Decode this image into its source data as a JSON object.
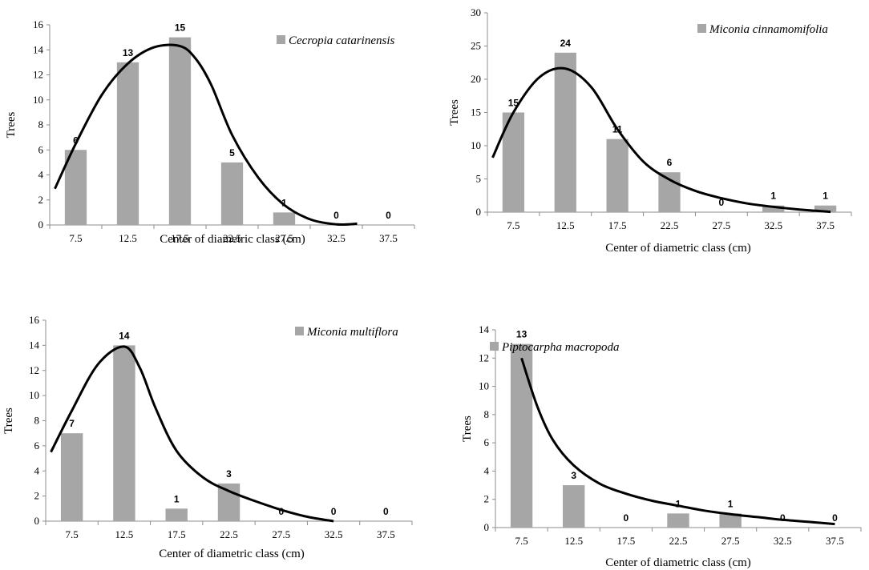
{
  "colors": {
    "bar": "#a6a6a6",
    "curve": "#000000",
    "axis": "#8c8c8c"
  },
  "chart_data": [
    {
      "type": "bar",
      "legend": "Cecropia catarinensis",
      "legend_placement": "top-right",
      "xlabel": "Center of diametric class (cm)",
      "ylabel": "Trees",
      "ylim": [
        0,
        16
      ],
      "yticks": [
        0,
        2,
        4,
        6,
        8,
        10,
        12,
        14,
        16
      ],
      "categories": [
        "7.5",
        "12.5",
        "17.5",
        "22.5",
        "27.5",
        "32.5",
        "37.5"
      ],
      "values": [
        6,
        13,
        15,
        5,
        1,
        0,
        0
      ],
      "data_labels": [
        "6",
        "13",
        "15",
        "5",
        "1",
        "0",
        "0"
      ],
      "grid": false,
      "fitted_curve": {
        "x": [
          5.5,
          7.5,
          10,
          12.5,
          15,
          17.5,
          19,
          20.5,
          22.5,
          25,
          27.5,
          30,
          32.5,
          34.5
        ],
        "y": [
          2.9,
          6.5,
          10.4,
          12.9,
          14.2,
          14.3,
          13.3,
          11.2,
          7.2,
          3.8,
          1.6,
          0.45,
          0.05,
          0.1
        ]
      }
    },
    {
      "type": "bar",
      "legend": "Miconia cinnamomifolia",
      "legend_placement": "top-right",
      "xlabel": "Center of diametric class (cm)",
      "ylabel": "Trees",
      "ylim": [
        0,
        30
      ],
      "yticks": [
        0,
        5,
        10,
        15,
        20,
        25,
        30
      ],
      "categories": [
        "7.5",
        "12.5",
        "17.5",
        "22.5",
        "27.5",
        "32.5",
        "37.5"
      ],
      "values": [
        15,
        24,
        11,
        6,
        0,
        1,
        1
      ],
      "data_labels": [
        "15",
        "24",
        "11",
        "6",
        "0",
        "1",
        "1"
      ],
      "grid": false,
      "fitted_curve": {
        "x": [
          5.5,
          7.5,
          10,
          12.5,
          15,
          17.5,
          20,
          22.5,
          25,
          27.5,
          30,
          32.5,
          35,
          38
        ],
        "y": [
          8.2,
          15.0,
          20.3,
          21.6,
          18.8,
          12.5,
          7.6,
          4.9,
          3.2,
          2.1,
          1.3,
          0.8,
          0.4,
          0.05
        ]
      }
    },
    {
      "type": "bar",
      "legend": "Miconia multiflora",
      "legend_placement": "top-right",
      "xlabel": "Center of diametric class (cm)",
      "ylabel": "Trees",
      "ylim": [
        0,
        16
      ],
      "yticks": [
        0,
        2,
        4,
        6,
        8,
        10,
        12,
        14,
        16
      ],
      "categories": [
        "7.5",
        "12.5",
        "17.5",
        "22.5",
        "27.5",
        "32.5",
        "37.5"
      ],
      "values": [
        7,
        14,
        1,
        3,
        0,
        0,
        0
      ],
      "data_labels": [
        "7",
        "14",
        "1",
        "3",
        "0",
        "0",
        "0"
      ],
      "grid": false,
      "fitted_curve": {
        "x": [
          5.5,
          7.5,
          10,
          12.5,
          14,
          15.5,
          17.5,
          20,
          22.5,
          25,
          27.5,
          30,
          32.5
        ],
        "y": [
          5.5,
          8.8,
          12.5,
          13.9,
          12.2,
          9.0,
          5.6,
          3.5,
          2.4,
          1.6,
          0.9,
          0.35,
          0.0
        ]
      }
    },
    {
      "type": "bar",
      "legend": "Piptocarpha macropoda",
      "legend_placement": "top-right",
      "xlabel": "Center of diametric class (cm)",
      "ylabel": "Trees",
      "ylim": [
        0,
        14
      ],
      "yticks": [
        0,
        2,
        4,
        6,
        8,
        10,
        12,
        14
      ],
      "categories": [
        "7.5",
        "12.5",
        "17.5",
        "22.5",
        "27.5",
        "32.5",
        "37.5"
      ],
      "values": [
        13,
        3,
        0,
        1,
        1,
        0,
        0
      ],
      "data_labels": [
        "13",
        "3",
        "0",
        "1",
        "1",
        "0",
        "0"
      ],
      "grid": false,
      "fitted_curve": {
        "x": [
          7.5,
          9,
          10.5,
          12.5,
          15,
          17.5,
          20,
          22.5,
          25,
          27.5,
          30,
          32.5,
          35,
          37.5
        ],
        "y": [
          12.0,
          8.6,
          6.2,
          4.4,
          3.1,
          2.4,
          1.9,
          1.55,
          1.2,
          0.95,
          0.75,
          0.55,
          0.4,
          0.25
        ]
      }
    }
  ]
}
